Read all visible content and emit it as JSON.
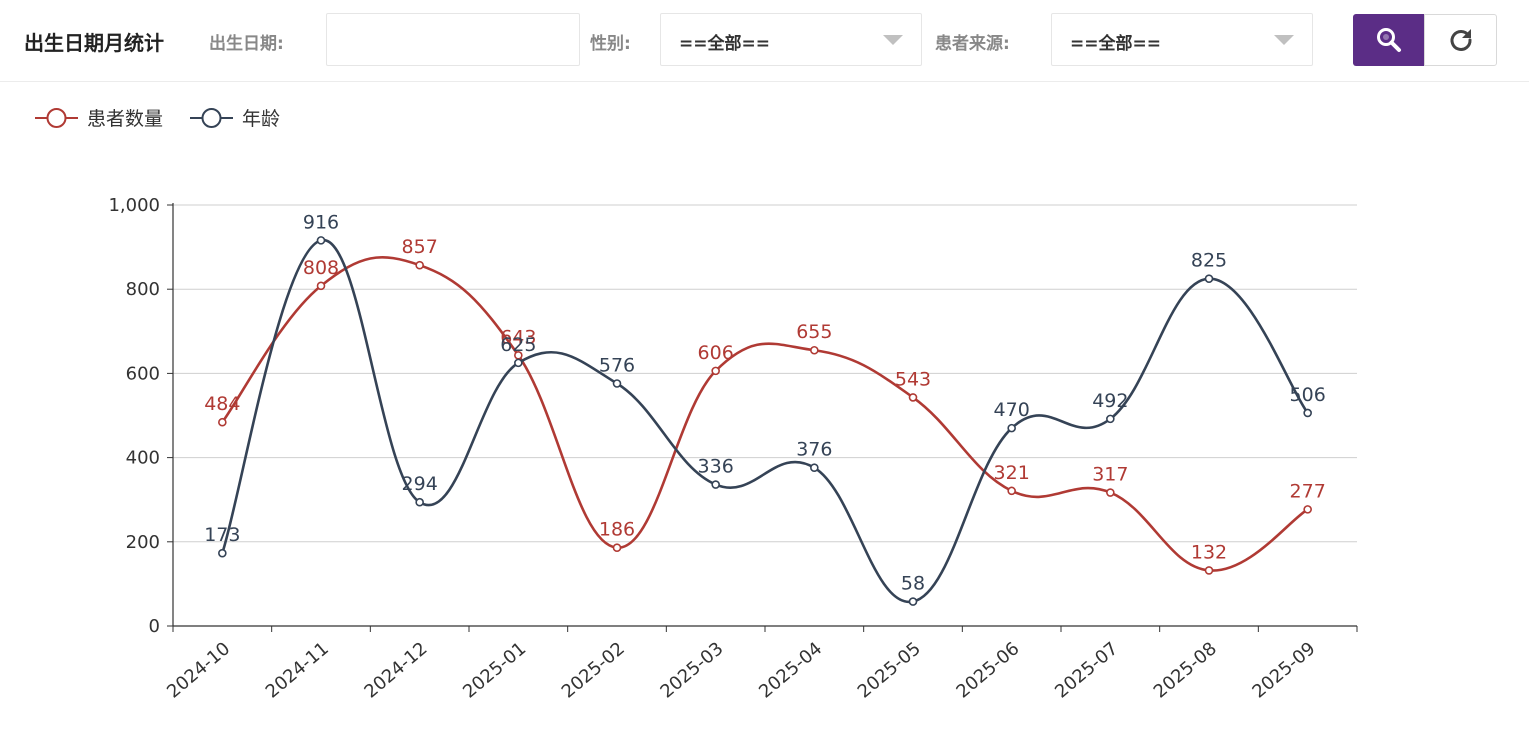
{
  "header": {
    "title": "出生日期月统计",
    "birth_label": "出生日期:",
    "birth_value": "",
    "gender_label": "性别:",
    "gender_value": "==全部==",
    "source_label": "患者来源:",
    "source_value": "==全部=="
  },
  "buttons": {
    "search_icon": "search-icon",
    "refresh_icon": "refresh-icon",
    "search_color": "#5b2d86"
  },
  "chart_data": {
    "type": "line",
    "smooth": true,
    "categories": [
      "2024-10",
      "2024-11",
      "2024-12",
      "2025-01",
      "2025-02",
      "2025-03",
      "2025-04",
      "2025-05",
      "2025-06",
      "2025-07",
      "2025-08",
      "2025-09"
    ],
    "ylim": [
      0,
      1000
    ],
    "yticks": [
      0,
      200,
      400,
      600,
      800,
      1000
    ],
    "ytick_labels": [
      "0",
      "200",
      "400",
      "600",
      "800",
      "1,000"
    ],
    "grid": true,
    "legend_position": "top-left",
    "series": [
      {
        "name": "患者数量",
        "color": "#b03a34",
        "values": [
          484,
          808,
          857,
          643,
          186,
          606,
          655,
          543,
          321,
          317,
          132,
          277
        ]
      },
      {
        "name": "年龄",
        "color": "#354356",
        "values": [
          173,
          916,
          294,
          625,
          576,
          336,
          376,
          58,
          470,
          492,
          825,
          506
        ]
      }
    ]
  }
}
